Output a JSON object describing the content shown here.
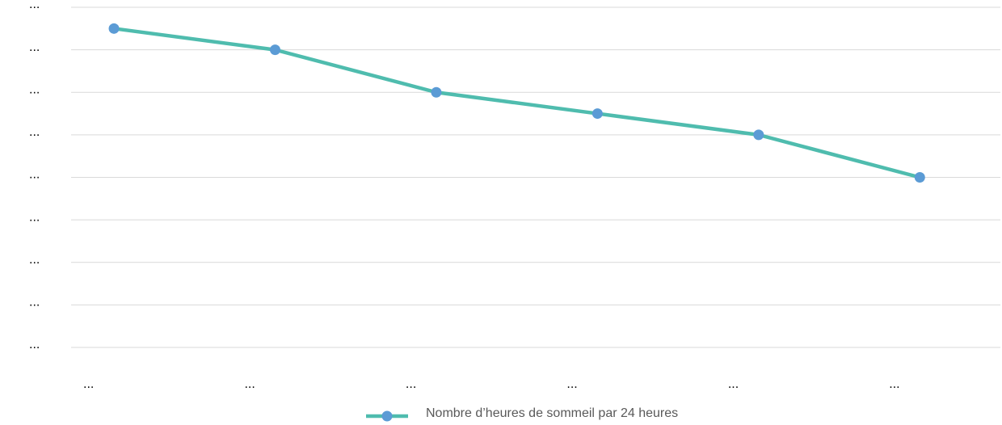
{
  "chart_data": {
    "type": "line",
    "categories": [
      "...",
      "...",
      "...",
      "...",
      "...",
      "..."
    ],
    "series": [
      {
        "name": "Nombre d’heures de sommeil par 24 heures",
        "color": "#4fbcae",
        "marker_color": "#5b9bd5",
        "values": [
          15,
          14,
          12,
          11,
          10,
          8
        ]
      }
    ],
    "ylim": [
      0,
      16
    ],
    "yticks": [
      {
        "value": 0,
        "label": "..."
      },
      {
        "value": 2,
        "label": "..."
      },
      {
        "value": 4,
        "label": "..."
      },
      {
        "value": 6,
        "label": "..."
      },
      {
        "value": 8,
        "label": "..."
      },
      {
        "value": 10,
        "label": "..."
      },
      {
        "value": 12,
        "label": "..."
      },
      {
        "value": 14,
        "label": "..."
      },
      {
        "value": 16,
        "label": "..."
      }
    ],
    "grid": true,
    "legend": "bottom"
  }
}
